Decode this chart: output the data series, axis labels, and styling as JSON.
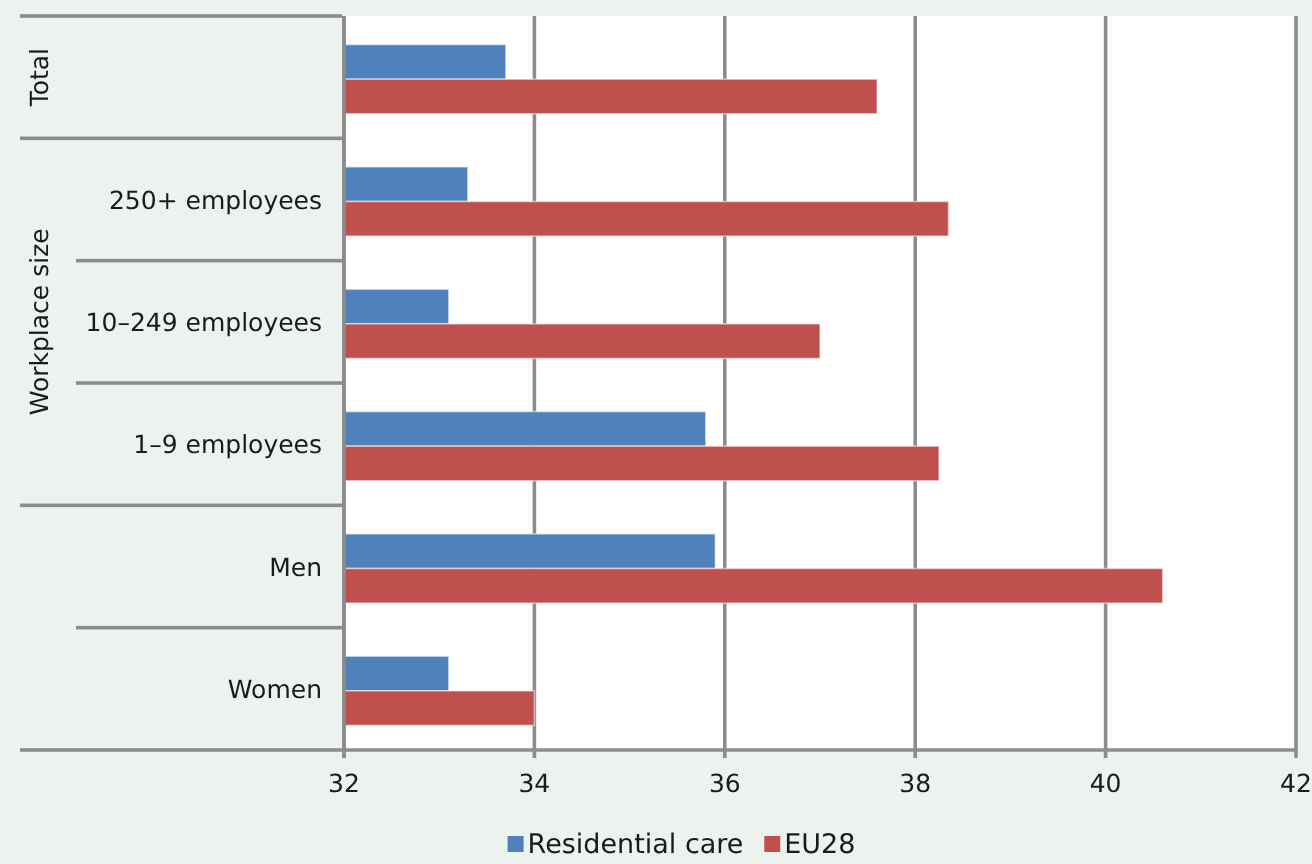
{
  "chart_data": {
    "type": "bar",
    "orientation": "horizontal",
    "categories": [
      null,
      "250+ employees",
      "10–249 employees",
      "1–9 employees",
      "Men",
      "Women"
    ],
    "series": [
      {
        "name": "Residential care",
        "color": "#4f81bd",
        "values": [
          33.7,
          33.3,
          33.1,
          35.8,
          35.9,
          33.1
        ]
      },
      {
        "name": "EU28",
        "color": "#c0504d",
        "values": [
          37.6,
          38.35,
          37.0,
          38.25,
          40.6,
          34.0
        ]
      }
    ],
    "xlim": [
      32,
      42
    ],
    "xticks": [
      32,
      34,
      36,
      38,
      40,
      42
    ],
    "grid": "x",
    "legend": "bottom",
    "annotations": [
      "Total",
      "Workplace size"
    ]
  }
}
